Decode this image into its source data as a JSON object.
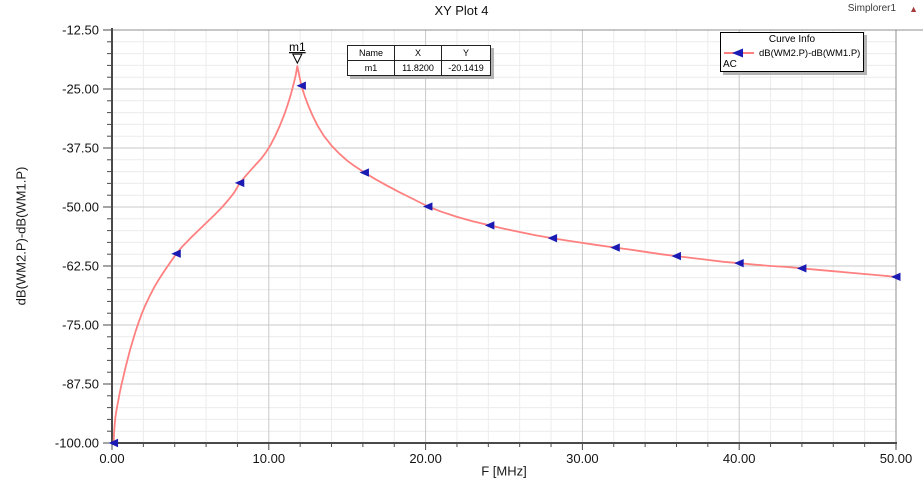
{
  "header": {
    "title": "XY Plot 4",
    "project": "Simplorer1",
    "project_icon": "red-triangle",
    "project_icon_color": "#a63d3d"
  },
  "axes": {
    "x": {
      "label": "F [MHz]",
      "tick_labels": [
        "0.00",
        "10.00",
        "20.00",
        "30.00",
        "40.00",
        "50.00"
      ],
      "major_step": 10,
      "minor_step": 2
    },
    "y": {
      "label": "dB(WM2.P)-dB(WM1.P)",
      "tick_labels": [
        "-12.50",
        "-25.00",
        "-37.50",
        "-50.00",
        "-62.50",
        "-75.00",
        "-87.50",
        "-100.00"
      ],
      "major_step": 12.5,
      "minor_step": 2.5
    }
  },
  "legend": {
    "title": "Curve Info",
    "entries": [
      {
        "label": "dB(WM2.P)-dB(WM1.P)",
        "solution": "AC",
        "line_color": "#ff8080",
        "marker_color": "#1b1bb3"
      }
    ]
  },
  "marker_table": {
    "headers": [
      "Name",
      "X",
      "Y"
    ],
    "rows": [
      [
        "m1",
        "11.8200",
        "-20.1419"
      ]
    ]
  },
  "colors": {
    "curve": "#ff8080",
    "marker": "#1b1bb3",
    "grid_minor": "#ececec",
    "grid_major": "#c9c9c9",
    "plot_border": "#8f8f8f",
    "axis": "#4a4a4a",
    "text": "#141414",
    "shadow": "#b4b4b4"
  },
  "chart_data": {
    "type": "line",
    "title": "XY Plot 4",
    "xlabel": "F [MHz]",
    "ylabel": "dB(WM2.P)-dB(WM1.P)",
    "xlim": [
      0,
      50
    ],
    "ylim": [
      -100,
      -12.5
    ],
    "grid": true,
    "legend_position": "top-right",
    "series": [
      {
        "name": "dB(WM2.P)-dB(WM1.P)",
        "solution": "AC",
        "color": "#ff8080",
        "marker": "left-triangle",
        "marker_color": "#1b1bb3",
        "points": [
          [
            0.1,
            -100.0
          ],
          [
            0.13,
            -98.0
          ],
          [
            0.17,
            -96.1
          ],
          [
            0.22,
            -94.5
          ],
          [
            0.3,
            -92.8
          ],
          [
            0.4,
            -91.0
          ],
          [
            0.5,
            -89.3
          ],
          [
            0.6,
            -87.7
          ],
          [
            0.72,
            -86.0
          ],
          [
            0.85,
            -84.2
          ],
          [
            1.0,
            -82.2
          ],
          [
            1.15,
            -80.3
          ],
          [
            1.3,
            -78.6
          ],
          [
            1.5,
            -76.4
          ],
          [
            1.7,
            -74.4
          ],
          [
            1.9,
            -72.6
          ],
          [
            2.1,
            -71.0
          ],
          [
            2.4,
            -68.9
          ],
          [
            2.7,
            -67.0
          ],
          [
            3.0,
            -65.3
          ],
          [
            3.35,
            -63.5
          ],
          [
            3.7,
            -61.8
          ],
          [
            4.1,
            -59.9
          ],
          [
            4.5,
            -58.3
          ],
          [
            5.0,
            -56.6
          ],
          [
            5.5,
            -55.0
          ],
          [
            6.0,
            -53.4
          ],
          [
            6.5,
            -51.8
          ],
          [
            7.0,
            -50.1
          ],
          [
            7.4,
            -48.6
          ],
          [
            7.8,
            -46.9
          ],
          [
            8.15,
            -44.9
          ],
          [
            8.5,
            -43.5
          ],
          [
            8.9,
            -42.0
          ],
          [
            9.2,
            -40.9
          ],
          [
            9.5,
            -39.8
          ],
          [
            9.8,
            -38.5
          ],
          [
            10.1,
            -36.9
          ],
          [
            10.4,
            -35.0
          ],
          [
            10.7,
            -32.8
          ],
          [
            11.0,
            -30.3
          ],
          [
            11.2,
            -28.4
          ],
          [
            11.4,
            -26.2
          ],
          [
            11.6,
            -23.7
          ],
          [
            11.72,
            -22.0
          ],
          [
            11.82,
            -20.14
          ],
          [
            11.95,
            -22.3
          ],
          [
            12.08,
            -24.3
          ],
          [
            12.3,
            -26.6
          ],
          [
            12.55,
            -28.8
          ],
          [
            12.8,
            -30.7
          ],
          [
            13.1,
            -32.7
          ],
          [
            13.5,
            -34.9
          ],
          [
            14.0,
            -37.0
          ],
          [
            14.5,
            -38.7
          ],
          [
            15.0,
            -40.2
          ],
          [
            15.5,
            -41.4
          ],
          [
            16.1,
            -42.7
          ],
          [
            16.8,
            -44.1
          ],
          [
            17.5,
            -45.4
          ],
          [
            18.3,
            -46.8
          ],
          [
            19.2,
            -48.3
          ],
          [
            20.15,
            -49.9
          ],
          [
            21.0,
            -51.0
          ],
          [
            22.0,
            -52.1
          ],
          [
            23.0,
            -53.0
          ],
          [
            24.1,
            -53.9
          ],
          [
            25.0,
            -54.6
          ],
          [
            26.0,
            -55.3
          ],
          [
            27.0,
            -56.0
          ],
          [
            28.1,
            -56.6
          ],
          [
            29.0,
            -57.1
          ],
          [
            30.0,
            -57.6
          ],
          [
            31.0,
            -58.1
          ],
          [
            32.1,
            -58.6
          ],
          [
            33.0,
            -59.0
          ],
          [
            34.0,
            -59.5
          ],
          [
            35.0,
            -60.0
          ],
          [
            36.0,
            -60.4
          ],
          [
            37.0,
            -60.8
          ],
          [
            38.0,
            -61.2
          ],
          [
            39.0,
            -61.6
          ],
          [
            40.0,
            -61.9
          ],
          [
            41.0,
            -62.2
          ],
          [
            42.0,
            -62.5
          ],
          [
            43.0,
            -62.7
          ],
          [
            44.0,
            -63.0
          ],
          [
            45.0,
            -63.3
          ],
          [
            46.0,
            -63.6
          ],
          [
            47.0,
            -63.9
          ],
          [
            48.0,
            -64.2
          ],
          [
            49.0,
            -64.5
          ],
          [
            50.0,
            -64.8
          ]
        ],
        "marker_points": [
          [
            0.1,
            -100.0
          ],
          [
            4.1,
            -59.9
          ],
          [
            8.15,
            -44.9
          ],
          [
            12.08,
            -24.3
          ],
          [
            16.1,
            -42.7
          ],
          [
            20.15,
            -49.9
          ],
          [
            24.1,
            -53.9
          ],
          [
            28.1,
            -56.6
          ],
          [
            32.1,
            -58.6
          ],
          [
            36.0,
            -60.4
          ],
          [
            40.0,
            -61.9
          ],
          [
            44.0,
            -63.0
          ],
          [
            50.0,
            -64.8
          ]
        ]
      }
    ],
    "peak_marker": {
      "name": "m1",
      "x": 11.82,
      "y": -20.1419
    }
  }
}
